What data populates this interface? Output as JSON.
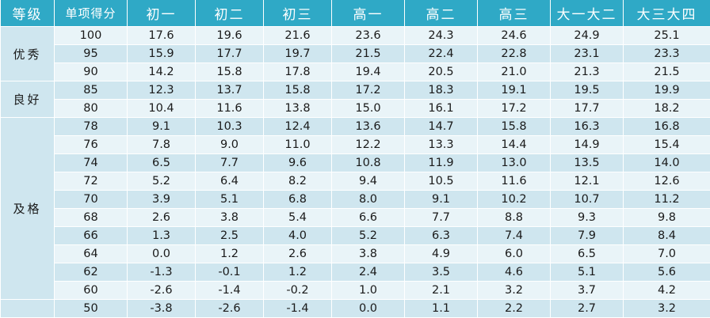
{
  "table": {
    "headers": [
      "等级",
      "单项得分",
      "初一",
      "初二",
      "初三",
      "高一",
      "高二",
      "高三",
      "大一大二",
      "大三大四"
    ],
    "groups": [
      {
        "grade": "优秀",
        "rows": [
          [
            "100",
            "17.6",
            "19.6",
            "21.6",
            "23.6",
            "24.3",
            "24.6",
            "24.9",
            "25.1"
          ],
          [
            "95",
            "15.9",
            "17.7",
            "19.7",
            "21.5",
            "22.4",
            "22.8",
            "23.1",
            "23.3"
          ],
          [
            "90",
            "14.2",
            "15.8",
            "17.8",
            "19.4",
            "20.5",
            "21.0",
            "21.3",
            "21.5"
          ]
        ]
      },
      {
        "grade": "良好",
        "rows": [
          [
            "85",
            "12.3",
            "13.7",
            "15.8",
            "17.2",
            "18.3",
            "19.1",
            "19.5",
            "19.9"
          ],
          [
            "80",
            "10.4",
            "11.6",
            "13.8",
            "15.0",
            "16.1",
            "17.2",
            "17.7",
            "18.2"
          ]
        ]
      },
      {
        "grade": "及格",
        "rows": [
          [
            "78",
            "9.1",
            "10.3",
            "12.4",
            "13.6",
            "14.7",
            "15.8",
            "16.3",
            "16.8"
          ],
          [
            "76",
            "7.8",
            "9.0",
            "11.0",
            "12.2",
            "13.3",
            "14.4",
            "14.9",
            "15.4"
          ],
          [
            "74",
            "6.5",
            "7.7",
            "9.6",
            "10.8",
            "11.9",
            "13.0",
            "13.5",
            "14.0"
          ],
          [
            "72",
            "5.2",
            "6.4",
            "8.2",
            "9.4",
            "10.5",
            "11.6",
            "12.1",
            "12.6"
          ],
          [
            "70",
            "3.9",
            "5.1",
            "6.8",
            "8.0",
            "9.1",
            "10.2",
            "10.7",
            "11.2"
          ],
          [
            "68",
            "2.6",
            "3.8",
            "5.4",
            "6.6",
            "7.7",
            "8.8",
            "9.3",
            "9.8"
          ],
          [
            "66",
            "1.3",
            "2.5",
            "4.0",
            "5.2",
            "6.3",
            "7.4",
            "7.9",
            "8.4"
          ],
          [
            "64",
            "0.0",
            "1.2",
            "2.6",
            "3.8",
            "4.9",
            "6.0",
            "6.5",
            "7.0"
          ],
          [
            "62",
            "-1.3",
            "-0.1",
            "1.2",
            "2.4",
            "3.5",
            "4.6",
            "5.1",
            "5.6"
          ],
          [
            "60",
            "-2.6",
            "-1.4",
            "-0.2",
            "1.0",
            "2.1",
            "3.2",
            "3.7",
            "4.2"
          ]
        ]
      },
      {
        "grade": "",
        "rows": [
          [
            "50",
            "-3.8",
            "-2.6",
            "-1.4",
            "0.0",
            "1.1",
            "2.2",
            "2.7",
            "3.2"
          ]
        ]
      }
    ]
  },
  "colors": {
    "header_bg": "#2fa9c6",
    "row_light": "#e9f4f8",
    "row_dark": "#cfe6ef"
  }
}
